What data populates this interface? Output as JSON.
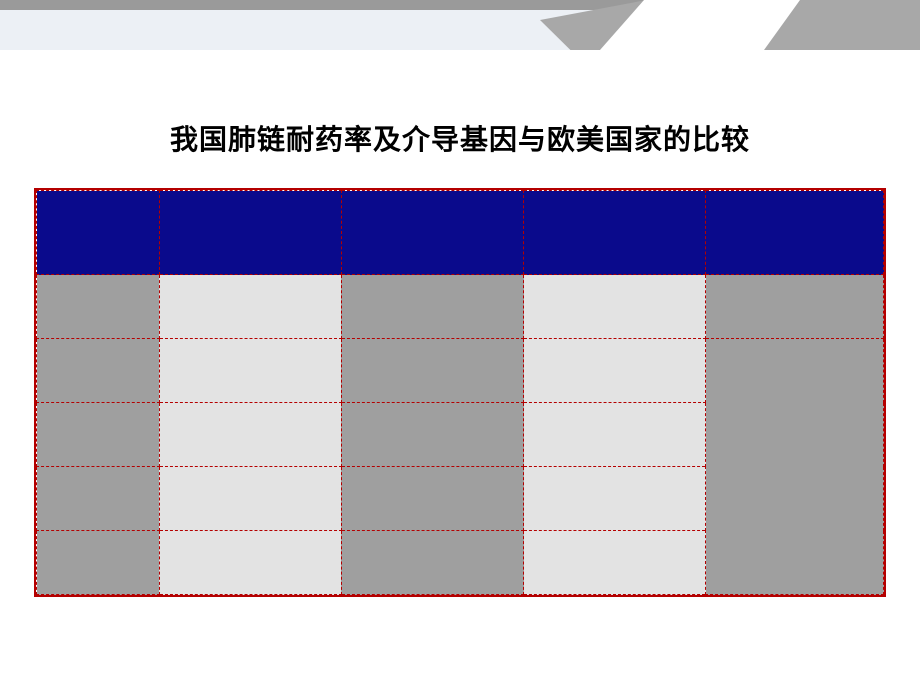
{
  "slide": {
    "title": "我国肺链耐药率及介导基因与欧美国家的比较",
    "title_fontsize": 28,
    "title_color": "#000000",
    "background": "#ffffff",
    "banner": {
      "topbar": "#9a9a9a",
      "lightband": "#ecf0f5",
      "wedge": "#a8a8a8"
    }
  },
  "table": {
    "type": "table",
    "outer_border_color": "#b40000",
    "cell_border_color": "#b40000",
    "header_bg": "#0a0a8c",
    "cell_light": "#e3e3e3",
    "cell_dark": "#9f9f9f",
    "columns": 5,
    "header_row_height": 84,
    "body_row_height": 64,
    "body_rows": 5,
    "cells": [
      [
        {
          "bg": "dark",
          "text": ""
        },
        {
          "bg": "light",
          "text": ""
        },
        {
          "bg": "dark",
          "text": ""
        },
        {
          "bg": "light",
          "text": ""
        },
        {
          "bg": "dark",
          "text": ""
        }
      ],
      [
        {
          "bg": "dark",
          "text": ""
        },
        {
          "bg": "light",
          "text": ""
        },
        {
          "bg": "dark",
          "text": ""
        },
        {
          "bg": "light",
          "text": ""
        },
        {
          "bg": "dark",
          "text": "",
          "rowspan": 4
        }
      ],
      [
        {
          "bg": "dark",
          "text": ""
        },
        {
          "bg": "light",
          "text": ""
        },
        {
          "bg": "dark",
          "text": ""
        },
        {
          "bg": "light",
          "text": ""
        }
      ],
      [
        {
          "bg": "dark",
          "text": ""
        },
        {
          "bg": "light",
          "text": ""
        },
        {
          "bg": "dark",
          "text": ""
        },
        {
          "bg": "light",
          "text": ""
        }
      ],
      [
        {
          "bg": "dark",
          "text": ""
        },
        {
          "bg": "light",
          "text": ""
        },
        {
          "bg": "dark",
          "text": ""
        },
        {
          "bg": "light",
          "text": ""
        }
      ]
    ]
  }
}
